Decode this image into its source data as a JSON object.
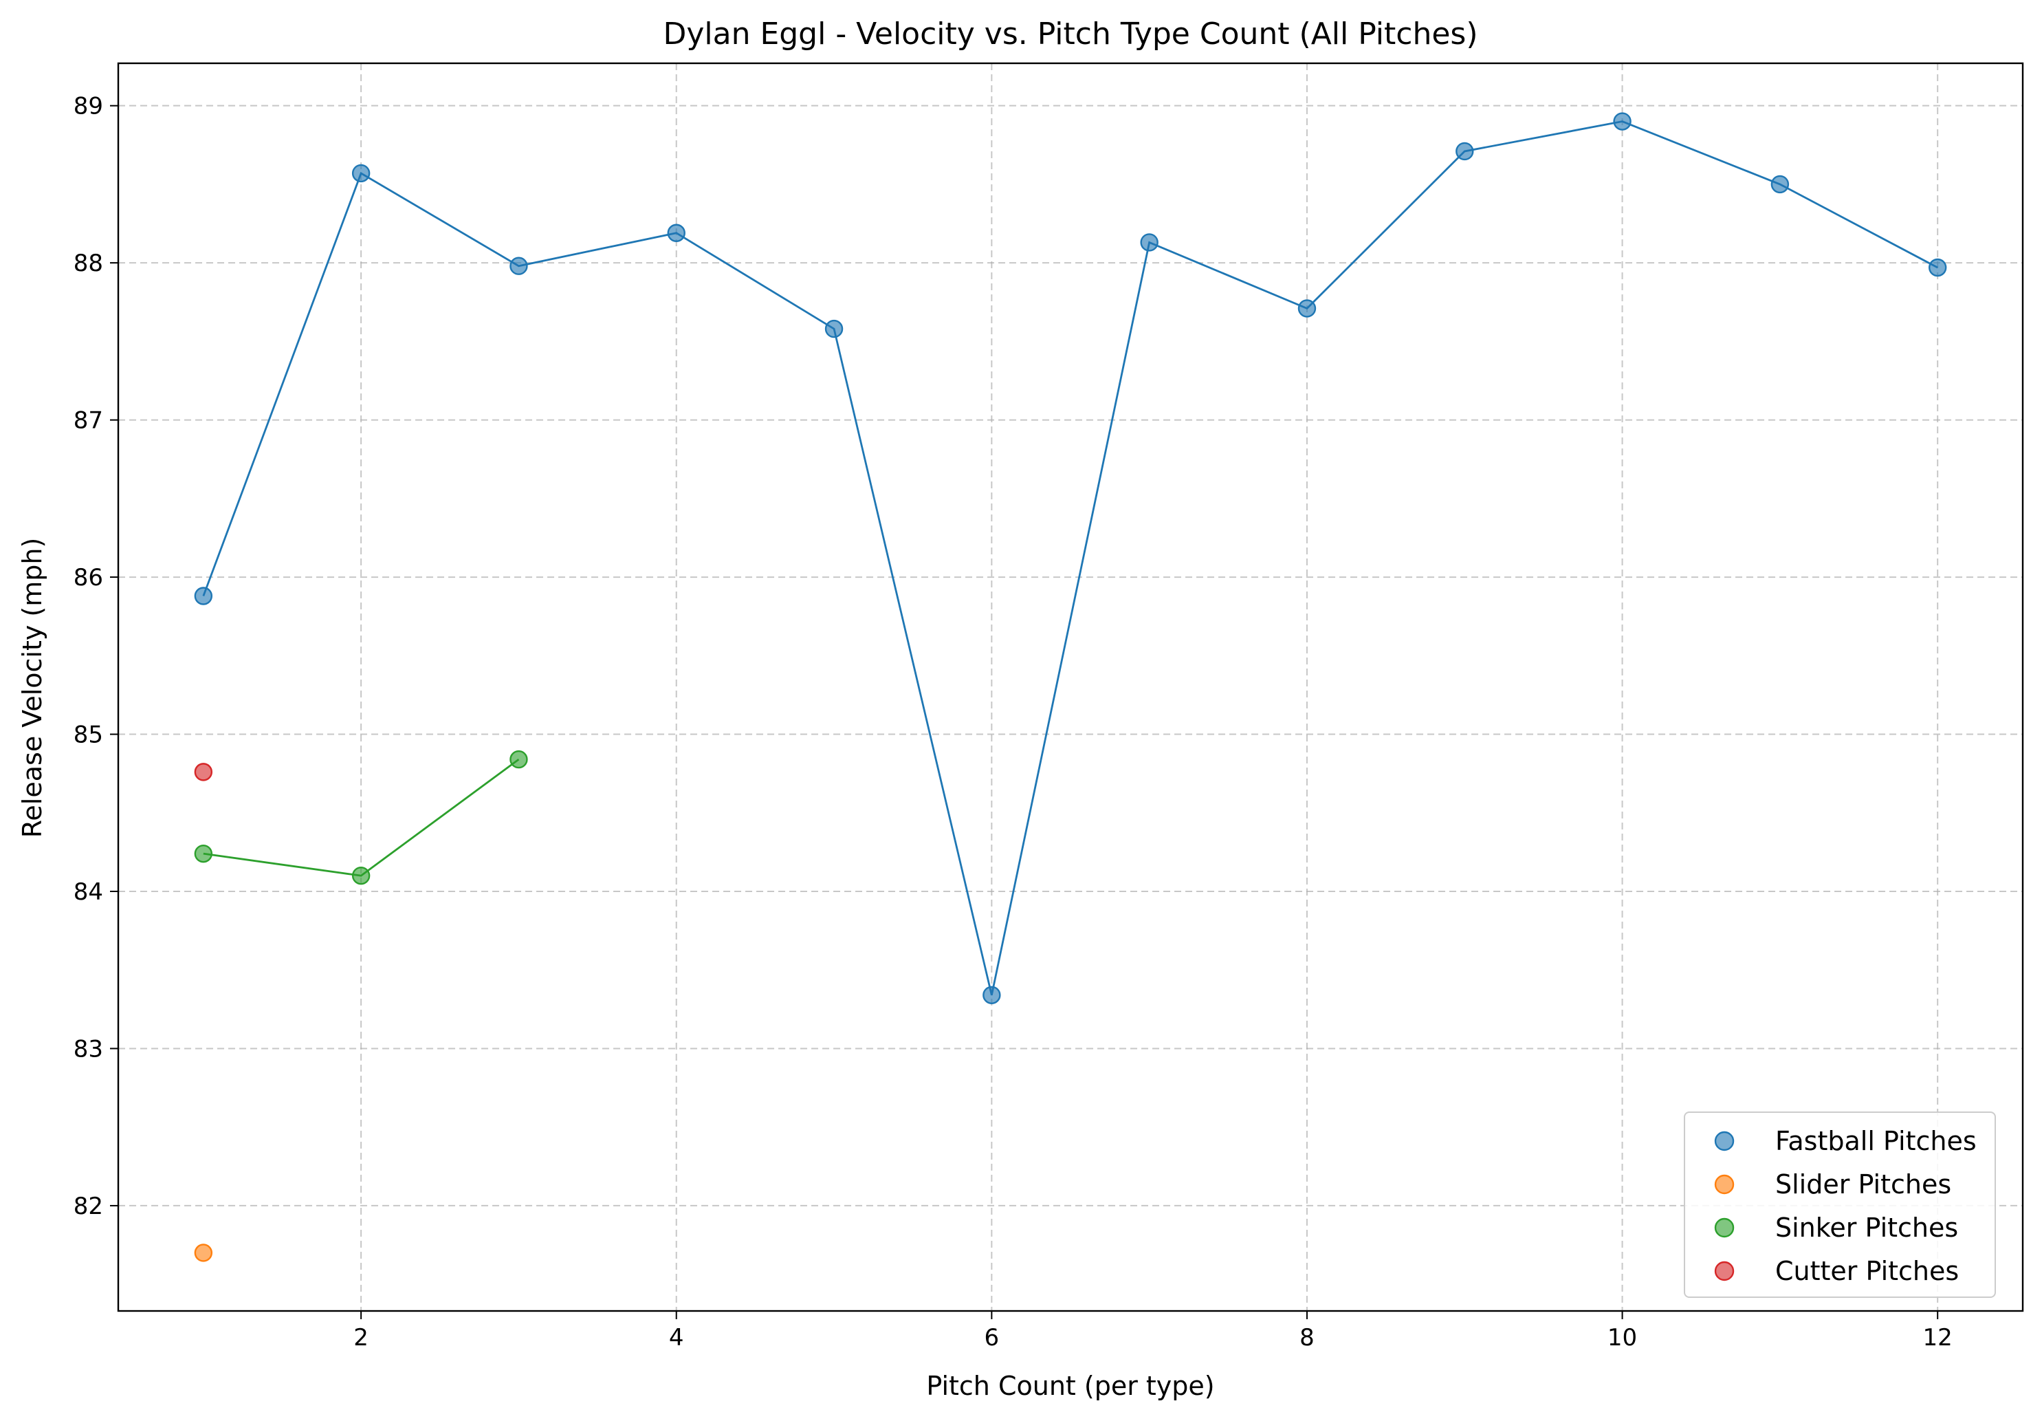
{
  "chart_data": {
    "type": "scatter",
    "title": "Dylan Eggl - Velocity vs. Pitch Type Count (All Pitches)",
    "xlabel": "Pitch Count (per type)",
    "ylabel": "Release Velocity (mph)",
    "xlim": [
      0.46,
      12.54
    ],
    "ylim": [
      81.33,
      89.27
    ],
    "xticks": [
      2,
      4,
      6,
      8,
      10,
      12
    ],
    "yticks": [
      82,
      83,
      84,
      85,
      86,
      87,
      88,
      89
    ],
    "grid": true,
    "legend_position": "lower-right",
    "series": [
      {
        "name": "Fastball Pitches",
        "color": "#1f77b4",
        "connect": true,
        "x": [
          1,
          2,
          3,
          4,
          5,
          6,
          7,
          8,
          9,
          10,
          11,
          12
        ],
        "y": [
          85.88,
          88.57,
          87.98,
          88.19,
          87.58,
          83.34,
          88.13,
          87.71,
          88.71,
          88.9,
          88.5,
          87.97
        ]
      },
      {
        "name": "Slider Pitches",
        "color": "#ff7f0e",
        "connect": false,
        "x": [
          1
        ],
        "y": [
          81.7
        ]
      },
      {
        "name": "Sinker Pitches",
        "color": "#2ca02c",
        "connect": true,
        "x": [
          1,
          2,
          3
        ],
        "y": [
          84.24,
          84.1,
          84.84
        ]
      },
      {
        "name": "Cutter Pitches",
        "color": "#d62728",
        "connect": false,
        "x": [
          1
        ],
        "y": [
          84.76
        ]
      }
    ]
  }
}
